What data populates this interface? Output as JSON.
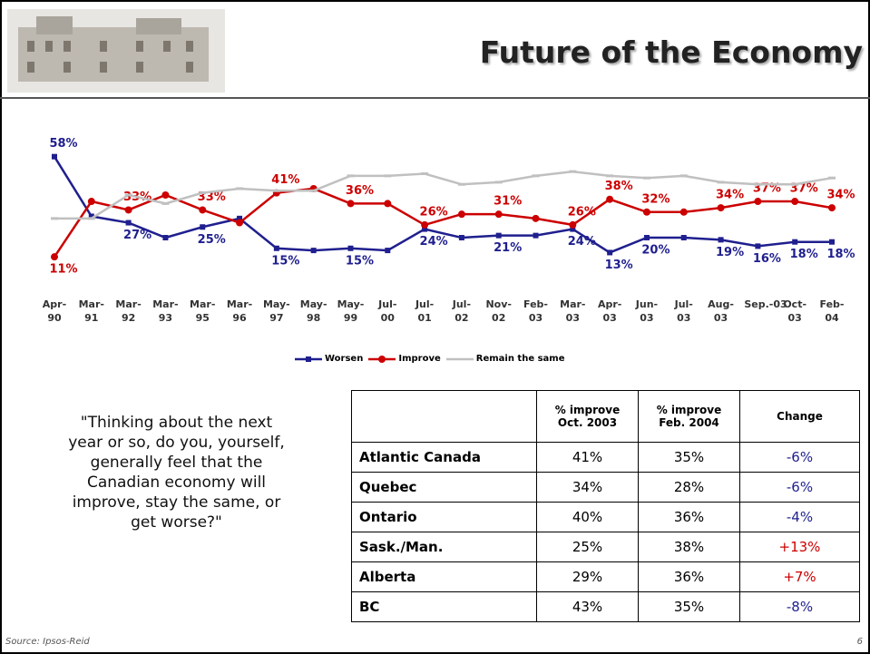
{
  "header": {
    "title": "Future of the Economy"
  },
  "chart_data": {
    "type": "line",
    "categories": [
      "Apr-90",
      "Mar-91",
      "Mar-92",
      "Mar-93",
      "Mar-95",
      "Mar-96",
      "May-97",
      "May-98",
      "May-99",
      "Jul-00",
      "Jul-01",
      "Jul-02",
      "Nov-02",
      "Feb-03",
      "Mar-03",
      "Apr-03",
      "Jun-03",
      "Jul-03",
      "Aug-03",
      "Sep.-03",
      "Oct-03",
      "Feb-04"
    ],
    "ylim": [
      0,
      60
    ],
    "legend": "bottom",
    "series": [
      {
        "name": "Worsen",
        "color": "#1f1f8f",
        "marker": "square",
        "values": [
          58,
          30,
          27,
          20,
          25,
          29,
          15,
          14,
          15,
          14,
          24,
          20,
          21,
          21,
          24,
          13,
          20,
          20,
          19,
          16,
          18,
          18
        ],
        "value_labels": [
          "58%",
          null,
          "27%",
          null,
          "25%",
          null,
          "15%",
          null,
          "15%",
          null,
          "24%",
          null,
          "21%",
          null,
          "24%",
          "13%",
          "20%",
          null,
          "19%",
          "16%",
          "18%",
          "18%"
        ]
      },
      {
        "name": "Improve",
        "color": "#cc0000",
        "marker": "circle",
        "values": [
          11,
          37,
          33,
          40,
          33,
          27,
          41,
          43,
          36,
          36,
          26,
          31,
          31,
          29,
          26,
          38,
          32,
          32,
          34,
          37,
          37,
          34
        ],
        "value_labels": [
          "11%",
          null,
          "33%",
          null,
          "33%",
          null,
          "41%",
          null,
          "36%",
          null,
          "26%",
          null,
          "31%",
          null,
          "26%",
          "38%",
          "32%",
          null,
          "34%",
          "37%",
          "37%",
          "34%"
        ]
      },
      {
        "name": "Remain the same",
        "color": "#c0c0c0",
        "marker": "dash",
        "values": [
          29,
          29,
          40,
          36,
          41,
          43,
          42,
          42,
          49,
          49,
          50,
          45,
          46,
          49,
          51,
          49,
          48,
          49,
          46,
          45,
          45,
          48
        ]
      }
    ]
  },
  "quote": "\"Thinking about the next year or so, do you, yourself, generally feel that the Canadian economy will improve, stay the same, or get worse?\"",
  "table": {
    "header": [
      "% improve Oct. 2003",
      "% improve Feb. 2004",
      "Change"
    ],
    "rows": [
      [
        "Atlantic Canada",
        "41%",
        "35%",
        "-6%"
      ],
      [
        "Quebec",
        "34%",
        "28%",
        "-6%"
      ],
      [
        "Ontario",
        "40%",
        "36%",
        "-4%"
      ],
      [
        "Sask./Man.",
        "25%",
        "38%",
        "+13%"
      ],
      [
        "Alberta",
        "29%",
        "36%",
        "+7%"
      ],
      [
        "BC",
        "43%",
        "35%",
        "-8%"
      ]
    ]
  },
  "footer": {
    "source": "Source: Ipsos-Reid",
    "page": "6"
  }
}
